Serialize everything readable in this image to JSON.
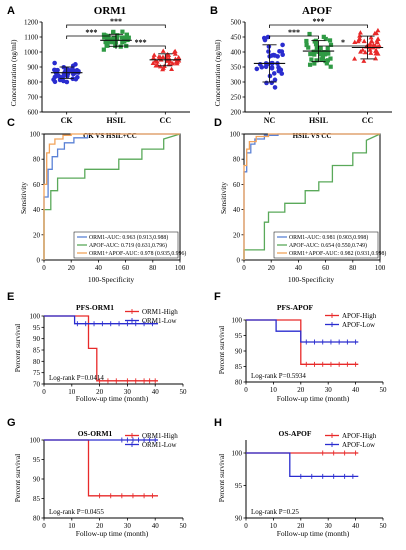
{
  "colors": {
    "ck": "#2a2ccf",
    "hsil": "#2f9a44",
    "cc": "#e82a2a",
    "nc": "#2a2ccf",
    "km_high": "#e82a2a",
    "km_low": "#2a2ccf",
    "roc_orm1": "#5b82d6",
    "roc_apof": "#5aa95a",
    "roc_comb": "#f2a35a"
  },
  "chart_data": [
    {
      "id": "A",
      "type": "scatter",
      "title": "ORM1",
      "xlabel": "",
      "ylabel": "Concentration (ng/ml)",
      "categories": [
        "CK",
        "HSIL",
        "CC"
      ],
      "ylim": [
        600,
        1200
      ],
      "yticks": [
        "600",
        "700",
        "800",
        "900",
        "1000",
        "1100",
        "1200"
      ],
      "groups": [
        {
          "name": "CK",
          "mean": 862,
          "sd": 38,
          "n": 40,
          "min": 780,
          "max": 930,
          "marker": "circle",
          "color_key": "ck"
        },
        {
          "name": "HSIL",
          "mean": 1078,
          "sd": 40,
          "n": 40,
          "min": 1000,
          "max": 1150,
          "marker": "square",
          "color_key": "hsil"
        },
        {
          "name": "CC",
          "mean": 948,
          "sd": 40,
          "n": 40,
          "min": 870,
          "max": 1020,
          "marker": "triangle",
          "color_key": "cc"
        }
      ],
      "significance": [
        {
          "from": 0,
          "to": 2,
          "label": "***"
        },
        {
          "from": 0,
          "to": 1,
          "label": "***"
        },
        {
          "from": 1,
          "to": 2,
          "label": "***"
        }
      ]
    },
    {
      "id": "B",
      "type": "scatter",
      "title": "APOF",
      "xlabel": "",
      "ylabel": "Concentration (ng/ml)",
      "categories": [
        "NC",
        "HSIL",
        "CC"
      ],
      "ylim": [
        200,
        500
      ],
      "yticks": [
        "200",
        "250",
        "300",
        "350",
        "400",
        "450",
        "500"
      ],
      "groups": [
        {
          "name": "NC",
          "mean": 362,
          "sd": 62,
          "n": 35,
          "min": 270,
          "max": 450,
          "marker": "circle",
          "color_key": "nc"
        },
        {
          "name": "HSIL",
          "mean": 403,
          "sd": 35,
          "n": 40,
          "min": 340,
          "max": 470,
          "marker": "square",
          "color_key": "hsil"
        },
        {
          "name": "CC",
          "mean": 415,
          "sd": 38,
          "n": 40,
          "min": 330,
          "max": 480,
          "marker": "triangle",
          "color_key": "cc"
        }
      ],
      "significance": [
        {
          "from": 0,
          "to": 2,
          "label": "***"
        },
        {
          "from": 0,
          "to": 1,
          "label": "***"
        },
        {
          "from": 1,
          "to": 2,
          "label": "*"
        }
      ]
    },
    {
      "id": "C",
      "type": "line",
      "title": "CK VS HSIL+CC",
      "xlabel": "100-Specificity",
      "ylabel": "Sensitivity",
      "xlim": [
        0,
        100
      ],
      "ylim": [
        0,
        100
      ],
      "xticks": [
        "0",
        "20",
        "40",
        "60",
        "80",
        "100"
      ],
      "yticks": [
        "0",
        "20",
        "40",
        "60",
        "80",
        "100"
      ],
      "series": [
        {
          "name": "ORM1-AUC: 0.963 (0.913,0.988)",
          "color_key": "roc_orm1",
          "x": [
            0,
            0,
            3,
            3,
            6,
            6,
            10,
            10,
            15,
            15,
            22,
            22,
            32,
            32,
            100
          ],
          "y": [
            0,
            50,
            50,
            72,
            72,
            82,
            82,
            88,
            88,
            93,
            93,
            97,
            97,
            100,
            100
          ]
        },
        {
          "name": "APOF-AUC: 0.719 (0.631,0.796)",
          "color_key": "roc_apof",
          "x": [
            0,
            0,
            5,
            5,
            10,
            10,
            30,
            30,
            55,
            55,
            72,
            72,
            88,
            88,
            100
          ],
          "y": [
            0,
            40,
            40,
            55,
            55,
            65,
            65,
            72,
            72,
            80,
            80,
            88,
            88,
            96,
            100
          ]
        },
        {
          "name": "ORM1+APOF-AUC: 0.978 (0.935,0.996)",
          "color_key": "roc_comb",
          "x": [
            0,
            0,
            2,
            2,
            4,
            4,
            8,
            8,
            14,
            14,
            20,
            20,
            100
          ],
          "y": [
            0,
            60,
            60,
            85,
            85,
            92,
            92,
            96,
            96,
            99,
            99,
            100,
            100
          ]
        }
      ]
    },
    {
      "id": "D",
      "type": "line",
      "title": "HSIL VS CC",
      "xlabel": "100-Specificity",
      "ylabel": "Sensitivity",
      "xlim": [
        0,
        100
      ],
      "ylim": [
        0,
        100
      ],
      "xticks": [
        "0",
        "20",
        "40",
        "60",
        "80",
        "100"
      ],
      "yticks": [
        "0",
        "20",
        "40",
        "60",
        "80",
        "100"
      ],
      "series": [
        {
          "name": "ORM1-AUC: 0.981 (0.903,0.998)",
          "color_key": "roc_orm1",
          "x": [
            0,
            0,
            2,
            2,
            5,
            5,
            8,
            8,
            15,
            15,
            25,
            25,
            100
          ],
          "y": [
            0,
            70,
            70,
            85,
            85,
            92,
            92,
            96,
            96,
            99,
            99,
            100,
            100
          ]
        },
        {
          "name": "APOF-AUC: 0.654 (0.550,0.749)",
          "color_key": "roc_apof",
          "x": [
            0,
            0,
            15,
            15,
            18,
            18,
            30,
            30,
            45,
            45,
            55,
            55,
            65,
            65,
            80,
            80,
            90,
            90,
            100
          ],
          "y": [
            0,
            8,
            8,
            30,
            30,
            38,
            38,
            45,
            45,
            55,
            55,
            62,
            62,
            75,
            75,
            85,
            85,
            95,
            100
          ]
        },
        {
          "name": "ORM1+APOF-AUC: 0.982 (0.931,0.998)",
          "color_key": "roc_comb",
          "x": [
            0,
            0,
            2,
            2,
            4,
            4,
            9,
            9,
            18,
            18,
            100
          ],
          "y": [
            0,
            75,
            75,
            88,
            88,
            94,
            94,
            98,
            98,
            100,
            100
          ]
        }
      ]
    },
    {
      "id": "E",
      "type": "line",
      "title": "PFS-ORM1",
      "xlabel": "Follow-up time (month)",
      "ylabel": "Percent survival",
      "xlim": [
        0,
        50
      ],
      "ylim": [
        70,
        100
      ],
      "xticks": [
        "0",
        "10",
        "20",
        "30",
        "40",
        "50"
      ],
      "yticks": [
        "70",
        "75",
        "80",
        "85",
        "90",
        "95",
        "100"
      ],
      "annotation": "Log-rank P=0.0414",
      "series": [
        {
          "name": "ORM1-High",
          "color_key": "km_high",
          "x": [
            0,
            16,
            16,
            19,
            19,
            41
          ],
          "y": [
            100,
            100,
            85.7,
            85.7,
            71.4,
            71.4
          ],
          "censor_x": [
            20,
            23,
            26,
            30,
            33,
            36,
            38,
            40
          ],
          "censor_y": 71.4
        },
        {
          "name": "ORM1-Low",
          "color_key": "km_low",
          "x": [
            0,
            11,
            11,
            41
          ],
          "y": [
            100,
            100,
            96.6,
            96.6
          ],
          "censor_x": [
            12,
            15,
            18,
            21,
            24,
            27,
            30,
            33,
            36,
            39
          ],
          "censor_y": 96.6
        }
      ]
    },
    {
      "id": "F",
      "type": "line",
      "title": "PFS-APOF",
      "xlabel": "Follow-up time (month)",
      "ylabel": "Percent survival",
      "xlim": [
        0,
        50
      ],
      "ylim": [
        80,
        100
      ],
      "xticks": [
        "0",
        "10",
        "20",
        "30",
        "40",
        "50"
      ],
      "yticks": [
        "80",
        "85",
        "90",
        "95",
        "100"
      ],
      "annotation": "Log-rank P=0.5934",
      "series": [
        {
          "name": "APOF-High",
          "color_key": "km_high",
          "x": [
            0,
            20,
            20,
            41
          ],
          "y": [
            100,
            100,
            85.7,
            85.7
          ],
          "censor_x": [
            22,
            25,
            28,
            31,
            34,
            37,
            40
          ],
          "censor_y": 85.7
        },
        {
          "name": "APOF-Low",
          "color_key": "km_low",
          "x": [
            0,
            11,
            11,
            20,
            20,
            41
          ],
          "y": [
            100,
            100,
            96.4,
            96.4,
            92.9,
            92.9
          ],
          "censor_x": [
            22,
            25,
            28,
            31,
            34,
            37,
            40
          ],
          "censor_y": 92.9
        }
      ]
    },
    {
      "id": "G",
      "type": "line",
      "title": "OS-ORM1",
      "xlabel": "Follow-up time (month)",
      "ylabel": "Percent survival",
      "xlim": [
        0,
        50
      ],
      "ylim": [
        80,
        100
      ],
      "xticks": [
        "0",
        "10",
        "20",
        "30",
        "40",
        "50"
      ],
      "yticks": [
        "80",
        "85",
        "90",
        "95",
        "100"
      ],
      "annotation": "Log-rank P=0.0455",
      "series": [
        {
          "name": "ORM1-High",
          "color_key": "km_high",
          "x": [
            0,
            16,
            16,
            41
          ],
          "y": [
            100,
            100,
            85.7,
            85.7
          ],
          "censor_x": [
            20,
            24,
            28,
            32,
            36,
            39
          ],
          "censor_y": 85.7
        },
        {
          "name": "ORM1-Low",
          "color_key": "km_low",
          "x": [
            0,
            41
          ],
          "y": [
            100,
            100
          ],
          "censor_x": [
            28,
            30,
            32,
            34,
            36,
            38,
            40
          ],
          "censor_y": 100
        }
      ]
    },
    {
      "id": "H",
      "type": "line",
      "title": "OS-APOF",
      "xlabel": "Follow-up time (month)",
      "ylabel": "Percent survival",
      "xlim": [
        0,
        50
      ],
      "ylim": [
        90,
        102
      ],
      "xticks": [
        "0",
        "10",
        "20",
        "30",
        "40",
        "50"
      ],
      "yticks": [
        "90",
        "95",
        "100"
      ],
      "annotation": "Log-rank P=0.25",
      "series": [
        {
          "name": "APOF-High",
          "color_key": "km_high",
          "x": [
            0,
            41
          ],
          "y": [
            100,
            100
          ],
          "censor_x": [
            28,
            32,
            36,
            40
          ],
          "censor_y": 100
        },
        {
          "name": "APOF-Low",
          "color_key": "km_low",
          "x": [
            0,
            16,
            16,
            41
          ],
          "y": [
            100,
            100,
            96.4,
            96.4
          ],
          "censor_x": [
            20,
            24,
            28,
            32,
            36,
            39
          ],
          "censor_y": 96.4
        }
      ]
    }
  ]
}
